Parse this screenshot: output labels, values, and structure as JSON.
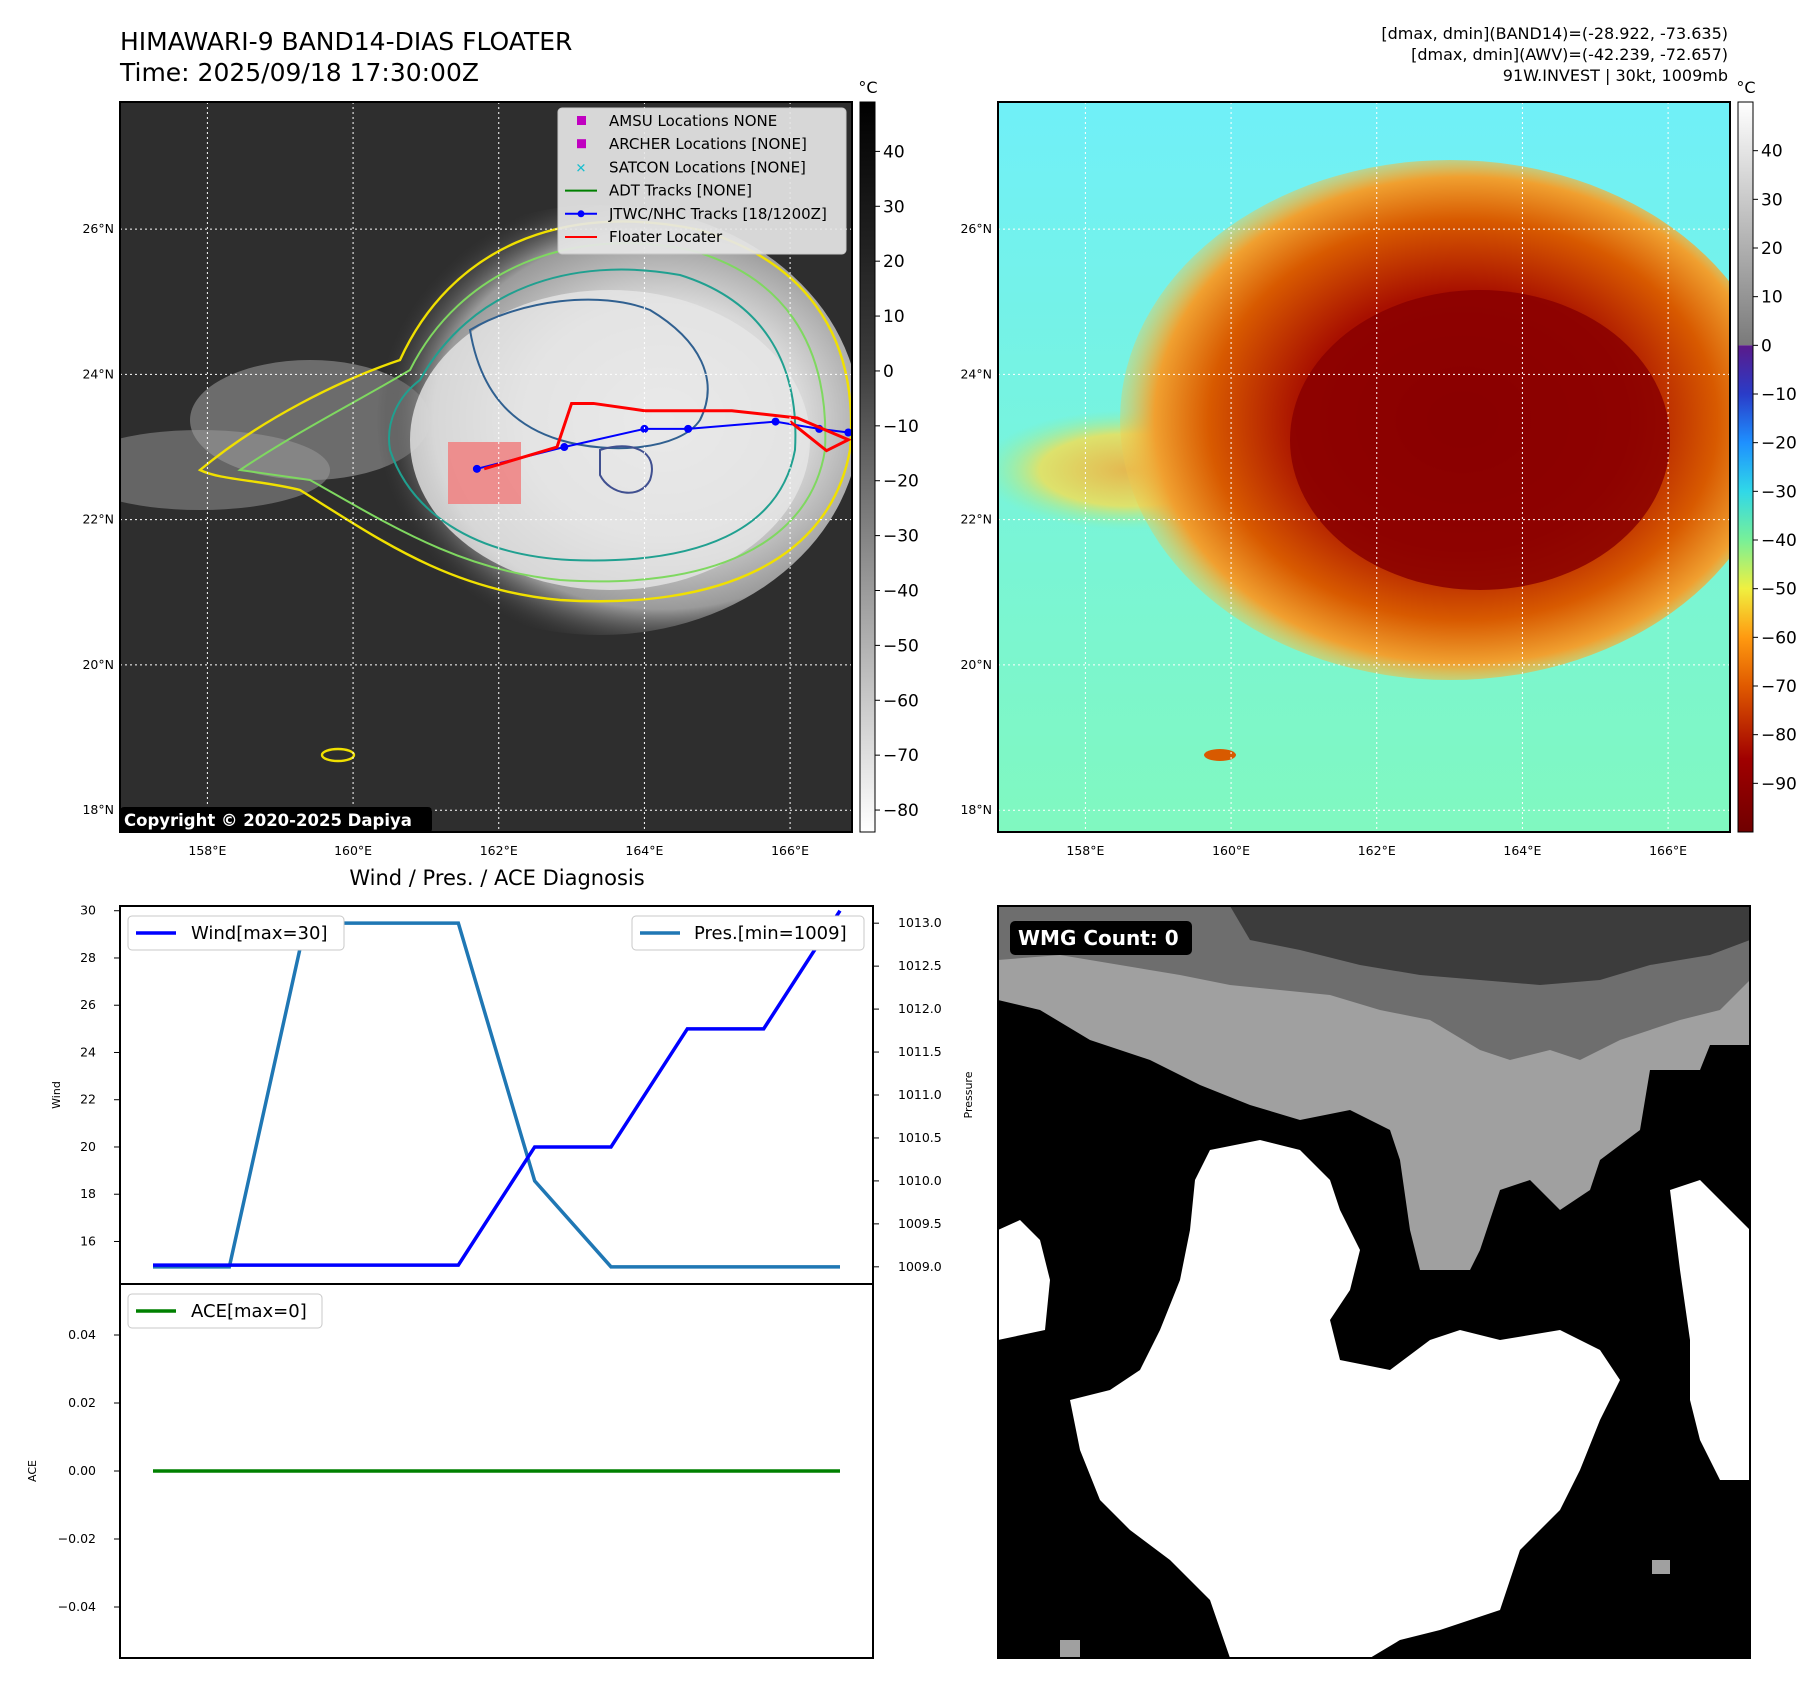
{
  "header": {
    "title": "HIMAWARI-9 BAND14-DIAS FLOATER",
    "time": "Time: 2025/09/18 17:30:00Z",
    "stats": [
      "[dmax, dmin](BAND14)=(-28.922, -73.635)",
      "[dmax, dmin](AWV)=(-42.239, -72.657)",
      "91W.INVEST | 30kt, 1009mb"
    ]
  },
  "map_axes": {
    "lon_ticks": [
      "158°E",
      "160°E",
      "162°E",
      "164°E",
      "166°E"
    ],
    "lat_ticks": [
      "26°N",
      "24°N",
      "22°N",
      "20°N",
      "18°N"
    ],
    "lon_values": [
      158,
      160,
      162,
      164,
      166
    ],
    "lat_values": [
      26,
      24,
      22,
      20,
      18
    ],
    "lon_range": [
      156.8,
      166.85
    ],
    "lat_range": [
      17.7,
      27.75
    ]
  },
  "legend": {
    "entries": [
      {
        "label": "AMSU Locations NONE",
        "marker": "square",
        "color": "#c000c0"
      },
      {
        "label": "ARCHER Locations [NONE]",
        "marker": "square",
        "color": "#c000c0"
      },
      {
        "label": "SATCON Locations [NONE]",
        "marker": "x",
        "color": "#17becf"
      },
      {
        "label": "ADT Tracks [NONE]",
        "marker": "line",
        "color": "#008000"
      },
      {
        "label": "JTWC/NHC Tracks [18/1200Z]",
        "marker": "line-dot",
        "color": "#0000ff"
      },
      {
        "label": "Floater Locater",
        "marker": "line",
        "color": "#ff0000"
      }
    ]
  },
  "copyright": "Copyright © 2020-2025 Dapiya",
  "colorbars": {
    "unit": "°C",
    "ir_ticks": [
      "40",
      "30",
      "20",
      "10",
      "0",
      "−10",
      "−20",
      "−30",
      "−40",
      "−50",
      "−60",
      "−70",
      "−80"
    ],
    "ir_values": [
      40,
      30,
      20,
      10,
      0,
      -10,
      -20,
      -30,
      -40,
      -50,
      -60,
      -70,
      -80
    ],
    "ir_range": [
      -84,
      49
    ],
    "awv_ticks": [
      "40",
      "30",
      "20",
      "10",
      "0",
      "−10",
      "−20",
      "−30",
      "−40",
      "−50",
      "−60",
      "−70",
      "−80",
      "−90"
    ],
    "awv_values": [
      40,
      30,
      20,
      10,
      0,
      -10,
      -20,
      -30,
      -40,
      -50,
      -60,
      -70,
      -80,
      -90
    ],
    "awv_range": [
      -100,
      50
    ]
  },
  "tracks": {
    "jtwc": [
      [
        161.7,
        22.7
      ],
      [
        162.9,
        23.0
      ],
      [
        164,
        23.25
      ],
      [
        164.6,
        23.25
      ],
      [
        165.8,
        23.35
      ],
      [
        166.4,
        23.25
      ],
      [
        166.8,
        23.2
      ]
    ],
    "floater": [
      [
        161.8,
        22.7
      ],
      [
        162.8,
        23.0
      ],
      [
        163.0,
        23.6
      ],
      [
        163.3,
        23.6
      ],
      [
        164.0,
        23.5
      ],
      [
        165.2,
        23.5
      ],
      [
        166.1,
        23.4
      ],
      [
        166.8,
        23.1
      ],
      [
        166.5,
        22.95
      ],
      [
        166.0,
        23.35
      ]
    ]
  },
  "wind_panel": {
    "title": "Wind / Pres. / ACE Diagnosis",
    "wind_ylabel": "Wind",
    "pres_ylabel": "Pressure",
    "wind_legend": "Wind[max=30]",
    "pres_legend": "Pres.[min=1009]",
    "wind_ticks": [
      "30",
      "28",
      "26",
      "24",
      "22",
      "20",
      "18",
      "16"
    ],
    "wind_tick_values": [
      30,
      28,
      26,
      24,
      22,
      20,
      18,
      16
    ],
    "pres_ticks": [
      "1013.0",
      "1012.5",
      "1012.0",
      "1011.5",
      "1011.0",
      "1010.5",
      "1010.0",
      "1009.5",
      "1009.0"
    ],
    "pres_tick_values": [
      1013,
      1012.5,
      1012,
      1011.5,
      1011,
      1010.5,
      1010,
      1009.5,
      1009
    ],
    "wind_ylim": [
      14.2,
      30.2
    ],
    "pres_ylim": [
      1008.8,
      1013.2
    ]
  },
  "ace_panel": {
    "ylabel": "ACE",
    "legend": "ACE[max=0]",
    "ticks": [
      "0.04",
      "0.02",
      "0.00",
      "−0.02",
      "−0.04"
    ],
    "tick_values": [
      0.04,
      0.02,
      0,
      -0.02,
      -0.04
    ],
    "ylim": [
      -0.055,
      0.055
    ]
  },
  "chart_data": [
    {
      "type": "line",
      "title": "Wind / Pres. / ACE Diagnosis",
      "x": [
        0,
        1,
        2,
        3,
        4,
        5,
        6,
        7,
        8,
        9
      ],
      "series": [
        {
          "name": "Wind[max=30]",
          "axis": "left",
          "color": "#0000ff",
          "values": [
            15,
            15,
            15,
            15,
            15,
            20,
            20,
            25,
            25,
            30
          ]
        },
        {
          "name": "Pres.[min=1009]",
          "axis": "right",
          "color": "#1f77b4",
          "values": [
            1009,
            1009,
            1013,
            1013,
            1013,
            1010,
            1009,
            1009,
            1009,
            1009
          ]
        }
      ],
      "ylabel": "Wind",
      "ylabel_right": "Pressure",
      "ylim": [
        14.2,
        30.2
      ],
      "ylim_right": [
        1008.8,
        1013.2
      ]
    },
    {
      "type": "line",
      "x": [
        0,
        1,
        2,
        3,
        4,
        5,
        6,
        7,
        8,
        9
      ],
      "series": [
        {
          "name": "ACE[max=0]",
          "color": "#008000",
          "values": [
            0,
            0,
            0,
            0,
            0,
            0,
            0,
            0,
            0,
            0
          ]
        }
      ],
      "ylabel": "ACE",
      "ylim": [
        -0.055,
        0.055
      ]
    }
  ],
  "wmg": {
    "label": "WMG Count: 0",
    "colors": [
      "#000000",
      "#3c3c3c",
      "#6e6e6e",
      "#a0a0a0",
      "#ffffff"
    ]
  }
}
